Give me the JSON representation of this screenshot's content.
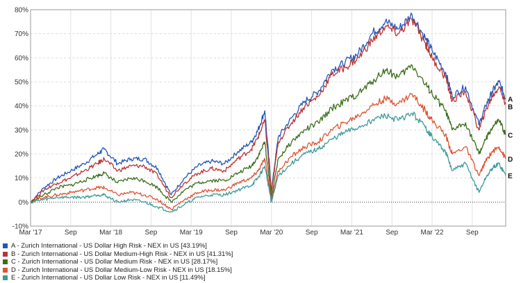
{
  "chart_data": {
    "type": "line",
    "ylabel_unit": "%",
    "ylim": [
      -10,
      80
    ],
    "y_ticks": [
      "-10%",
      "0%",
      "10%",
      "20%",
      "30%",
      "40%",
      "50%",
      "60%",
      "70%",
      "80%"
    ],
    "x_ticks": [
      "Mar '17",
      "Sep",
      "Mar '18",
      "Sep",
      "Mar '19",
      "Sep",
      "Mar '20",
      "Sep",
      "Mar '21",
      "Sep",
      "Mar '22",
      "Sep"
    ],
    "grid": true,
    "legend_position": "bottom-left",
    "x": [
      "2017-03",
      "2017-05",
      "2017-07",
      "2017-09",
      "2017-11",
      "2018-01",
      "2018-02",
      "2018-04",
      "2018-06",
      "2018-08",
      "2018-10",
      "2018-12",
      "2019-02",
      "2019-04",
      "2019-06",
      "2019-08",
      "2019-10",
      "2019-12",
      "2020-01",
      "2020-02",
      "2020-03",
      "2020-04",
      "2020-06",
      "2020-08",
      "2020-10",
      "2020-12",
      "2021-02",
      "2021-04",
      "2021-06",
      "2021-08",
      "2021-10",
      "2021-12",
      "2022-02",
      "2022-03",
      "2022-05",
      "2022-06",
      "2022-08",
      "2022-10",
      "2022-11",
      "2022-12",
      "2023-01",
      "2023-02"
    ],
    "series": [
      {
        "label": "A",
        "name": "A - Zurich International - US Dollar High Risk - NEX in US [43.19%]",
        "color": "#2255bb",
        "values": [
          0,
          6,
          10,
          13,
          16,
          20,
          22,
          16,
          18,
          18,
          14,
          3,
          10,
          15,
          17,
          16,
          21,
          25,
          30,
          38,
          5,
          27,
          35,
          42,
          46,
          55,
          58,
          62,
          70,
          75,
          72,
          78,
          68,
          63,
          54,
          44,
          48,
          32,
          40,
          46,
          50,
          43
        ]
      },
      {
        "label": "B",
        "name": "B - Zurich International - US Dollar Medium-High Risk - NEX in US [41.31%]",
        "color": "#bb3333",
        "values": [
          0,
          5,
          8,
          10,
          13,
          16,
          18,
          13,
          15,
          15,
          11,
          2,
          8,
          12,
          14,
          13,
          18,
          22,
          27,
          34,
          4,
          25,
          33,
          40,
          44,
          53,
          56,
          60,
          67,
          73,
          70,
          76,
          66,
          60,
          52,
          42,
          46,
          30,
          38,
          44,
          48,
          41
        ]
      },
      {
        "label": "C",
        "name": "C - Zurich International - US Dollar Medium Risk - NEX in US [28.17%]",
        "color": "#3a6e1a",
        "values": [
          0,
          3,
          6,
          7,
          9,
          11,
          12,
          8,
          10,
          9,
          6,
          0,
          5,
          8,
          9,
          9,
          12,
          15,
          19,
          25,
          2,
          18,
          25,
          30,
          33,
          39,
          42,
          45,
          50,
          55,
          52,
          57,
          49,
          45,
          38,
          30,
          33,
          20,
          26,
          31,
          34,
          28
        ]
      },
      {
        "label": "D",
        "name": "D - Zurich International - US Dollar Medium-Low Risk - NEX in US [18.15%]",
        "color": "#dd5533",
        "values": [
          0,
          2,
          3,
          4,
          5,
          6,
          6,
          3,
          4,
          3,
          1,
          -3,
          1,
          4,
          5,
          5,
          8,
          10,
          13,
          18,
          1,
          13,
          19,
          23,
          25,
          30,
          33,
          36,
          40,
          43,
          41,
          45,
          38,
          34,
          28,
          20,
          23,
          11,
          17,
          21,
          23,
          18
        ]
      },
      {
        "label": "E",
        "name": "E - Zurich International - US Dollar Low Risk - NEX in US [11.49%]",
        "color": "#3e9a9a",
        "values": [
          0,
          1,
          2,
          2,
          2,
          3,
          3,
          0,
          1,
          0,
          -2,
          -4,
          -1,
          2,
          3,
          3,
          5,
          7,
          10,
          15,
          0,
          11,
          16,
          20,
          22,
          26,
          29,
          31,
          34,
          36,
          34,
          37,
          31,
          27,
          21,
          13,
          16,
          4,
          10,
          14,
          16,
          11
        ]
      }
    ]
  }
}
